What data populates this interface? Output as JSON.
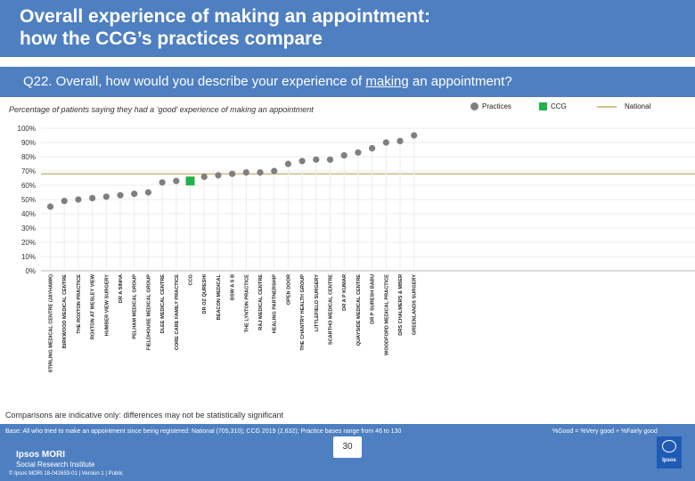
{
  "slide": {
    "title_line1": "Overall experience of making an appointment:",
    "title_line2": "how the CCG’s practices compare",
    "question_prefix": "Q22. Overall, how would you describe your experience of ",
    "question_underlined": "making",
    "question_suffix": " an appointment?",
    "subtitle": "Percentage of patients saying they had a ‘good’ experience of making an appointment",
    "note": "Comparisons are indicative only: differences may not be statistically significant",
    "base": "Base: All who tried to make an appointment since being registered: National (705,310); CCG 2019 (2,632); Practice bases range from 46 to 130",
    "good_key": "%Good = %Very good + %Fairly good",
    "page_number": "30",
    "brand_line1": "Ipsos MORI",
    "brand_line2": "Social Research Institute",
    "copyright": "© Ipsos MORI     18-042653-01 | Version 1 | Public",
    "logo_text": "Ipsos"
  },
  "legend": {
    "practices": "Practices",
    "ccg": "CCG",
    "national": "National"
  },
  "colors": {
    "header_bg": "#4e7fc1",
    "practice": "#7f7f7f",
    "ccg": "#22b14c",
    "national": "#c9c28a",
    "grid": "#ececec"
  },
  "chart_data": {
    "type": "scatter",
    "title": "Percentage of patients saying they had a ‘good’ experience of making an appointment",
    "ylabel": "",
    "xlabel": "",
    "ylim": [
      0,
      100
    ],
    "yticks": [
      "0%",
      "10%",
      "20%",
      "30%",
      "40%",
      "50%",
      "60%",
      "70%",
      "80%",
      "90%",
      "100%"
    ],
    "national_value": 68,
    "categories": [
      "STIRLING MEDICAL CENTRE (JAYHAWK)",
      "BIRKWOOD MEDICAL CENTRE",
      "THE ROXTON PRACTICE",
      "ROXTON AT WESLEY VIEW",
      "HUMBER VIEW SURGERY",
      "DR A SINHA",
      "PELHAM MEDICAL GROUP",
      "FIELDHOUSE MEDICAL GROUP",
      "DLEE MEDICAL CENTRE",
      "CORE CARE FAMILY PRACTICE",
      "CCG",
      "DR OZ QURESHI",
      "BEACON MEDICAL",
      "BSW A S B",
      "THE LYNTON PRACTICE",
      "RAJ MEDICAL CENTRE",
      "HEALING PARTNERSHIP",
      "OPEN DOOR",
      "THE CHANTRY HEALTH GROUP",
      "LITTLEFIELD SURGERY",
      "SCARTHO MEDICAL CENTRE",
      "DR A P KUMAR",
      "QUAYSIDE MEDICAL CENTRE",
      "DR P SURESH BABU",
      "WOODFORD MEDICAL PRACTICE",
      "DRS CHALMERS & MBER",
      "GREENLANDS SURGERY"
    ],
    "values": [
      45,
      49,
      50,
      51,
      52,
      53,
      54,
      55,
      62,
      63,
      63,
      66,
      67,
      68,
      69,
      69,
      70,
      75,
      77,
      78,
      78,
      81,
      83,
      86,
      90,
      91,
      95
    ],
    "series_flags": [
      "P",
      "P",
      "P",
      "P",
      "P",
      "P",
      "P",
      "P",
      "P",
      "P",
      "C",
      "P",
      "P",
      "P",
      "P",
      "P",
      "P",
      "P",
      "P",
      "P",
      "P",
      "P",
      "P",
      "P",
      "P",
      "P",
      "P"
    ]
  }
}
